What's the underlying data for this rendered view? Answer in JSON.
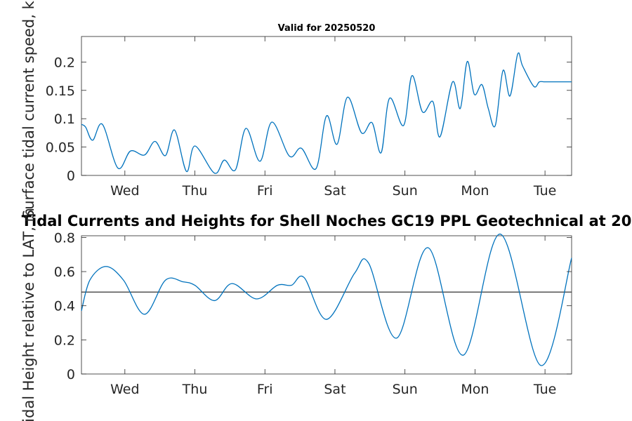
{
  "chart_data": [
    {
      "type": "line",
      "title": "Valid for 20250520",
      "ylabel": "Surface tidal current speed, kn",
      "ylim": [
        0,
        0.245
      ],
      "yticks": [
        0,
        0.05,
        0.1,
        0.15,
        0.2
      ],
      "ytick_labels": [
        "0",
        "0.05",
        "0.1",
        "0.15",
        "0.2"
      ],
      "xlim": [
        0,
        7
      ],
      "xticks": [
        0.62,
        1.62,
        2.62,
        3.62,
        4.62,
        5.62,
        6.62
      ],
      "xtick_labels": [
        "Wed",
        "Thu",
        "Fri",
        "Sat",
        "Sun",
        "Mon",
        "Tue"
      ],
      "line_color": "#0072bd",
      "grid": false,
      "series": [
        {
          "x": [
            0,
            0.06,
            0.16,
            0.3,
            0.52,
            0.7,
            0.9,
            1.05,
            1.2,
            1.33,
            1.5,
            1.62,
            1.9,
            2.04,
            2.2,
            2.35,
            2.55,
            2.72,
            2.97,
            3.14,
            3.35,
            3.5,
            3.65,
            3.8,
            4.0,
            4.15,
            4.28,
            4.4,
            4.6,
            4.72,
            4.87,
            5.02,
            5.12,
            5.3,
            5.41,
            5.51,
            5.61,
            5.72,
            5.81,
            5.91,
            6.02,
            6.12,
            6.23,
            6.3,
            6.46,
            6.54,
            6.62,
            6.79,
            6.91,
            7.0
          ],
          "y": [
            0.09,
            0.085,
            0.062,
            0.09,
            0.013,
            0.043,
            0.036,
            0.06,
            0.035,
            0.08,
            0.007,
            0.052,
            0.004,
            0.027,
            0.01,
            0.083,
            0.025,
            0.094,
            0.034,
            0.048,
            0.012,
            0.105,
            0.055,
            0.138,
            0.075,
            0.093,
            0.04,
            0.136,
            0.088,
            0.176,
            0.112,
            0.13,
            0.068,
            0.165,
            0.118,
            0.201,
            0.143,
            0.16,
            0.118,
            0.088,
            0.185,
            0.14,
            0.214,
            0.193,
            0.157,
            0.165,
            0.165,
            0.165,
            0.165,
            0.165
          ]
        }
      ]
    },
    {
      "type": "line",
      "title": "Tidal Currents and Heights for Shell Noches   GC19 PPL  Geotechnical at 20",
      "ylabel": "Tidal Height relative to LAT, m",
      "ylim": [
        0,
        0.81
      ],
      "yticks": [
        0,
        0.2,
        0.4,
        0.6,
        0.8
      ],
      "ytick_labels": [
        "0",
        "0.2",
        "0.4",
        "0.6",
        "0.8"
      ],
      "xlim": [
        0,
        7
      ],
      "xticks": [
        0.62,
        1.62,
        2.62,
        3.62,
        4.62,
        5.62,
        6.62
      ],
      "xtick_labels": [
        "Wed",
        "Thu",
        "Fri",
        "Sat",
        "Sun",
        "Mon",
        "Tue"
      ],
      "line_color": "#0072bd",
      "reference_line": {
        "y": 0.48,
        "color": "#333333"
      },
      "grid": false,
      "series": [
        {
          "x": [
            0,
            0.12,
            0.35,
            0.6,
            0.9,
            1.2,
            1.45,
            1.62,
            1.9,
            2.15,
            2.5,
            2.8,
            3.0,
            3.18,
            3.5,
            3.9,
            4.1,
            4.5,
            4.95,
            5.45,
            5.98,
            6.56,
            7.0
          ],
          "y": [
            0.37,
            0.55,
            0.63,
            0.55,
            0.35,
            0.55,
            0.54,
            0.52,
            0.43,
            0.53,
            0.44,
            0.52,
            0.52,
            0.565,
            0.32,
            0.59,
            0.65,
            0.21,
            0.74,
            0.11,
            0.82,
            0.05,
            0.68
          ]
        }
      ]
    }
  ]
}
